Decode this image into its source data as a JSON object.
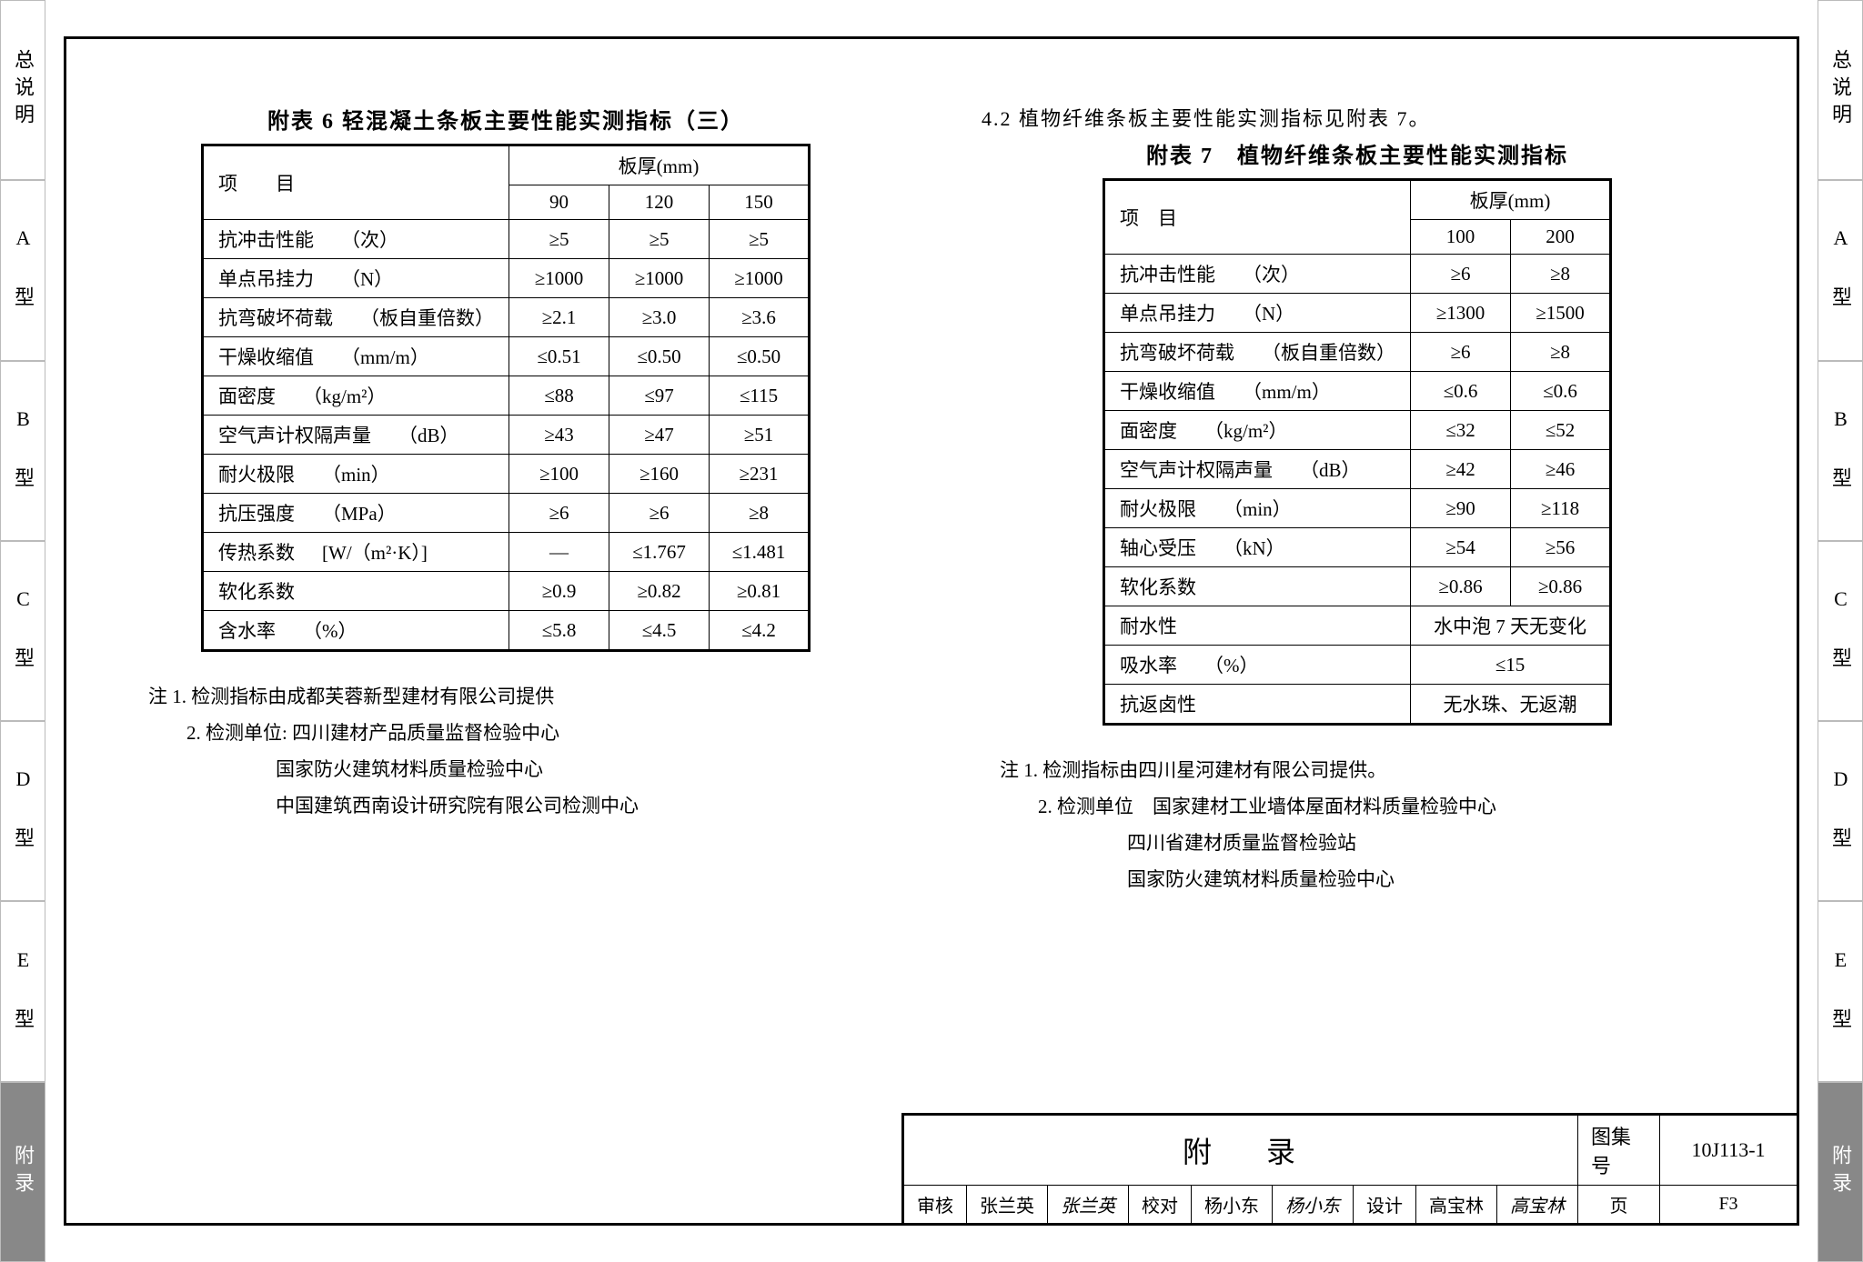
{
  "side_tabs": [
    "总说明",
    "A 型",
    "B 型",
    "C 型",
    "D 型",
    "E 型",
    "附录"
  ],
  "left_table": {
    "title": "附表 6  轻混凝土条板主要性能实测指标（三）",
    "header_group": "板厚(mm)",
    "col_project": "项　　目",
    "columns": [
      "90",
      "120",
      "150"
    ],
    "rows": [
      {
        "label": "抗冲击性能",
        "unit": "（次）",
        "vals": [
          "≥5",
          "≥5",
          "≥5"
        ]
      },
      {
        "label": "单点吊挂力",
        "unit": "（N）",
        "vals": [
          "≥1000",
          "≥1000",
          "≥1000"
        ]
      },
      {
        "label": "抗弯破坏荷载",
        "unit": "（板自重倍数）",
        "vals": [
          "≥2.1",
          "≥3.0",
          "≥3.6"
        ]
      },
      {
        "label": "干燥收缩值",
        "unit": "（mm/m）",
        "vals": [
          "≤0.51",
          "≤0.50",
          "≤0.50"
        ]
      },
      {
        "label": "面密度",
        "unit": "（kg/m²）",
        "vals": [
          "≤88",
          "≤97",
          "≤115"
        ]
      },
      {
        "label": "空气声计权隔声量",
        "unit": "（dB）",
        "vals": [
          "≥43",
          "≥47",
          "≥51"
        ]
      },
      {
        "label": "耐火极限",
        "unit": "（min）",
        "vals": [
          "≥100",
          "≥160",
          "≥231"
        ]
      },
      {
        "label": "抗压强度",
        "unit": "（MPa）",
        "vals": [
          "≥6",
          "≥6",
          "≥8"
        ]
      },
      {
        "label": "传热系数",
        "unit": "[W/（m²·K）]",
        "vals": [
          "—",
          "≤1.767",
          "≤1.481"
        ]
      },
      {
        "label": "软化系数",
        "unit": "",
        "vals": [
          "≥0.9",
          "≥0.82",
          "≥0.81"
        ]
      },
      {
        "label": "含水率",
        "unit": "（%）",
        "vals": [
          "≤5.8",
          "≤4.5",
          "≤4.2"
        ]
      }
    ],
    "notes": [
      "注 1. 检测指标由成都芙蓉新型建材有限公司提供",
      "2. 检测单位: 四川建材产品质量监督检验中心",
      "国家防火建筑材料质量检验中心",
      "中国建筑西南设计研究院有限公司检测中心"
    ]
  },
  "right_intro": "4.2 植物纤维条板主要性能实测指标见附表 7。",
  "right_table": {
    "title": "附表 7　植物纤维条板主要性能实测指标",
    "header_group": "板厚(mm)",
    "col_project": "项　目",
    "columns": [
      "100",
      "200"
    ],
    "rows": [
      {
        "label": "抗冲击性能",
        "unit": "（次）",
        "vals": [
          "≥6",
          "≥8"
        ]
      },
      {
        "label": "单点吊挂力",
        "unit": "（N）",
        "vals": [
          "≥1300",
          "≥1500"
        ]
      },
      {
        "label": "抗弯破坏荷载",
        "unit": "（板自重倍数）",
        "vals": [
          "≥6",
          "≥8"
        ]
      },
      {
        "label": "干燥收缩值",
        "unit": "（mm/m）",
        "vals": [
          "≤0.6",
          "≤0.6"
        ]
      },
      {
        "label": "面密度",
        "unit": "（kg/m²）",
        "vals": [
          "≤32",
          "≤52"
        ]
      },
      {
        "label": "空气声计权隔声量",
        "unit": "（dB）",
        "vals": [
          "≥42",
          "≥46"
        ]
      },
      {
        "label": "耐火极限",
        "unit": "（min）",
        "vals": [
          "≥90",
          "≥118"
        ]
      },
      {
        "label": "轴心受压",
        "unit": "（kN）",
        "vals": [
          "≥54",
          "≥56"
        ]
      },
      {
        "label": "软化系数",
        "unit": "",
        "vals": [
          "≥0.86",
          "≥0.86"
        ]
      },
      {
        "label": "耐水性",
        "unit": "",
        "span": "水中泡 7 天无变化"
      },
      {
        "label": "吸水率",
        "unit": "（%）",
        "span": "≤15"
      },
      {
        "label": "抗返卤性",
        "unit": "",
        "span": "无水珠、无返潮"
      }
    ],
    "notes": [
      "注 1. 检测指标由四川星河建材有限公司提供。",
      "2. 检测单位　国家建材工业墙体屋面材料质量检验中心",
      "四川省建材质量监督检验站",
      "国家防火建筑材料质量检验中心"
    ]
  },
  "title_block": {
    "appendix": "附录",
    "atlas_label": "图集号",
    "atlas_no": "10J113-1",
    "review_label": "审核",
    "review_name": "张兰英",
    "review_sig": "张兰英",
    "check_label": "校对",
    "check_name": "杨小东",
    "check_sig": "杨小东",
    "design_label": "设计",
    "design_name": "高宝林",
    "design_sig": "高宝林",
    "page_label": "页",
    "page_no": "F3"
  }
}
